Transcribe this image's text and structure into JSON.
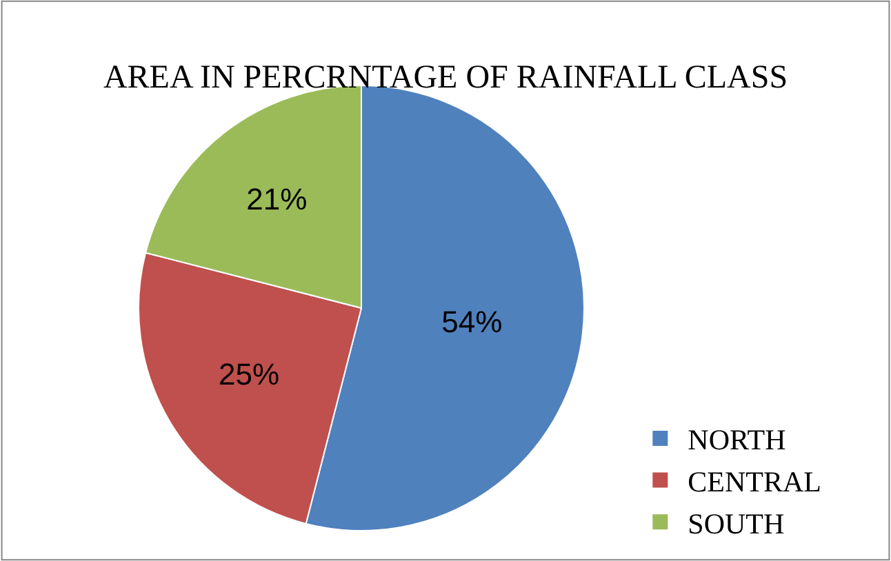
{
  "chart_data": {
    "type": "pie",
    "title": "AREA IN PERCRNTAGE OF RAINFALL CLASS",
    "categories": [
      "NORTH",
      "CENTRAL",
      "SOUTH"
    ],
    "values": [
      54,
      25,
      21
    ],
    "colors": [
      "#4f81bd",
      "#c0504d",
      "#9bbb59"
    ],
    "value_labels": [
      "54%",
      "25%",
      "21%"
    ],
    "legend": "bottom right"
  }
}
